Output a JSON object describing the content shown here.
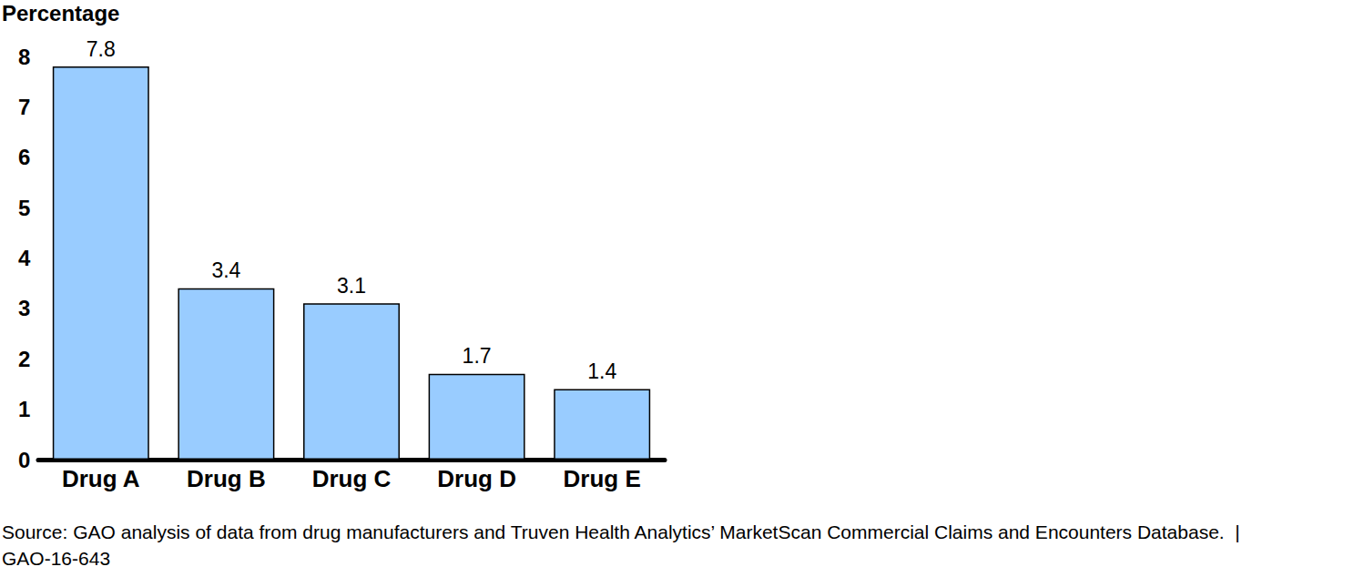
{
  "chart_data": {
    "type": "bar",
    "ylabel": "Percentage",
    "categories": [
      "Drug A",
      "Drug B",
      "Drug C",
      "Drug D",
      "Drug E"
    ],
    "values": [
      7.8,
      3.4,
      3.1,
      1.7,
      1.4
    ],
    "color": "#99ccff",
    "ylim": [
      0,
      8
    ],
    "yticks": [
      0,
      1,
      2,
      3,
      4,
      5,
      6,
      7,
      8
    ],
    "grid": false,
    "data_labels": true,
    "source": "Source: GAO analysis of data from drug manufacturers and Truven Health Analytics’ MarketScan Commercial Claims and Encounters Database.  |  GAO-16-643"
  }
}
